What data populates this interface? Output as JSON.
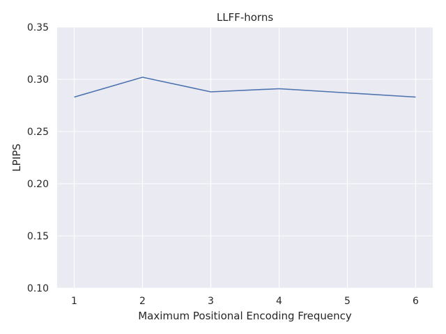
{
  "chart_data": {
    "type": "line",
    "title": "LLFF-horns",
    "xlabel": "Maximum Positional Encoding Frequency",
    "ylabel": "LPIPS",
    "x": [
      1,
      2,
      3,
      4,
      5,
      6
    ],
    "xticks": [
      "1",
      "2",
      "3",
      "4",
      "5",
      "6"
    ],
    "yticks": [
      "0.10",
      "0.15",
      "0.20",
      "0.25",
      "0.30",
      "0.35"
    ],
    "xlim": [
      0.75,
      6.25
    ],
    "ylim": [
      0.1,
      0.35
    ],
    "grid": true,
    "background_color": "#eaeaf2",
    "grid_color": "#ffffff",
    "series": [
      {
        "values": [
          0.283,
          0.302,
          0.288,
          0.291,
          0.287,
          0.283
        ],
        "color": "#4c72b0"
      }
    ]
  }
}
